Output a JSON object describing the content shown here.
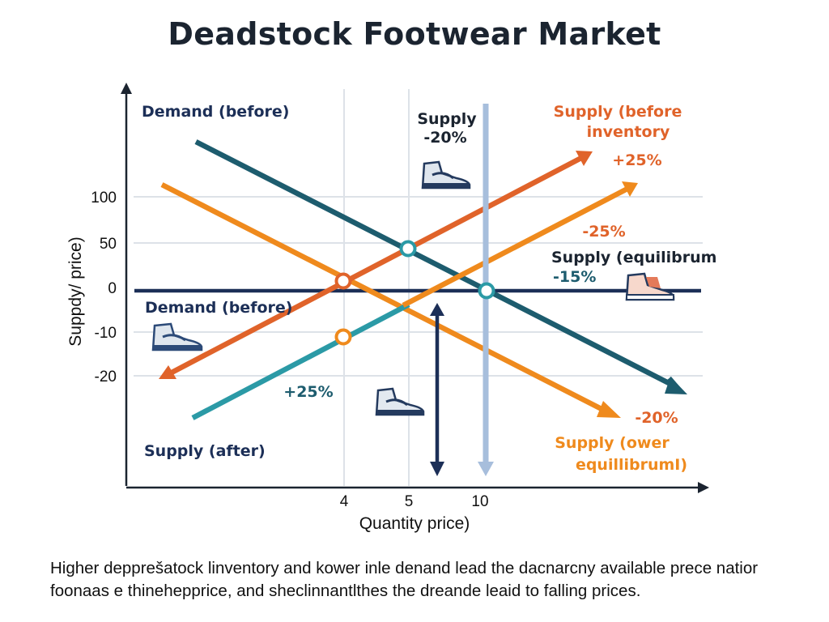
{
  "chart_data": {
    "type": "line",
    "title": "Deadstock Footwear Market",
    "xlabel": "Quantity price)",
    "ylabel": "Suppdy/ price)",
    "x_ticks": [
      "4",
      "5",
      "10"
    ],
    "y_ticks": [
      "100",
      "50",
      "0",
      "-10",
      "-20"
    ],
    "grid": true,
    "annotations": [
      {
        "id": "demand-before-top",
        "lines": [
          "Demand (before)"
        ]
      },
      {
        "id": "supply-minus20-top",
        "lines": [
          "Supply",
          "-20%"
        ]
      },
      {
        "id": "supply-before-inventory",
        "lines": [
          "Supply (before",
          "inventory"
        ]
      },
      {
        "id": "plus25-right",
        "lines": [
          "+25%"
        ]
      },
      {
        "id": "minus25-right",
        "lines": [
          "-25%"
        ]
      },
      {
        "id": "supply-equilibrium",
        "lines": [
          "Supply (equilibrum",
          "-15%"
        ]
      },
      {
        "id": "demand-before-left",
        "lines": [
          "Demand (before)"
        ]
      },
      {
        "id": "plus25-left",
        "lines": [
          "+25%"
        ]
      },
      {
        "id": "supply-after",
        "lines": [
          "Supply (after)"
        ]
      },
      {
        "id": "minus20-bottom",
        "lines": [
          "-20%"
        ]
      },
      {
        "id": "supply-lower-equilibrium",
        "lines": [
          "Supply (ower",
          "equillibrumI)"
        ]
      }
    ],
    "colors": {
      "dark_teal": "#1d5c6e",
      "teal": "#2b9aa6",
      "orange": "#ef8a1d",
      "red_orange": "#e0632a",
      "navy": "#1c2f57",
      "light_blue": "#a7bedc",
      "grid": "#dde2e8"
    }
  },
  "caption": [
    "Higher depprešatock linventory and kower inle denand lead the dacnarcny available prece natior",
    "foonaas e thinehepprice, and sheclinnantlthes the dreande leaid to falling prices."
  ]
}
